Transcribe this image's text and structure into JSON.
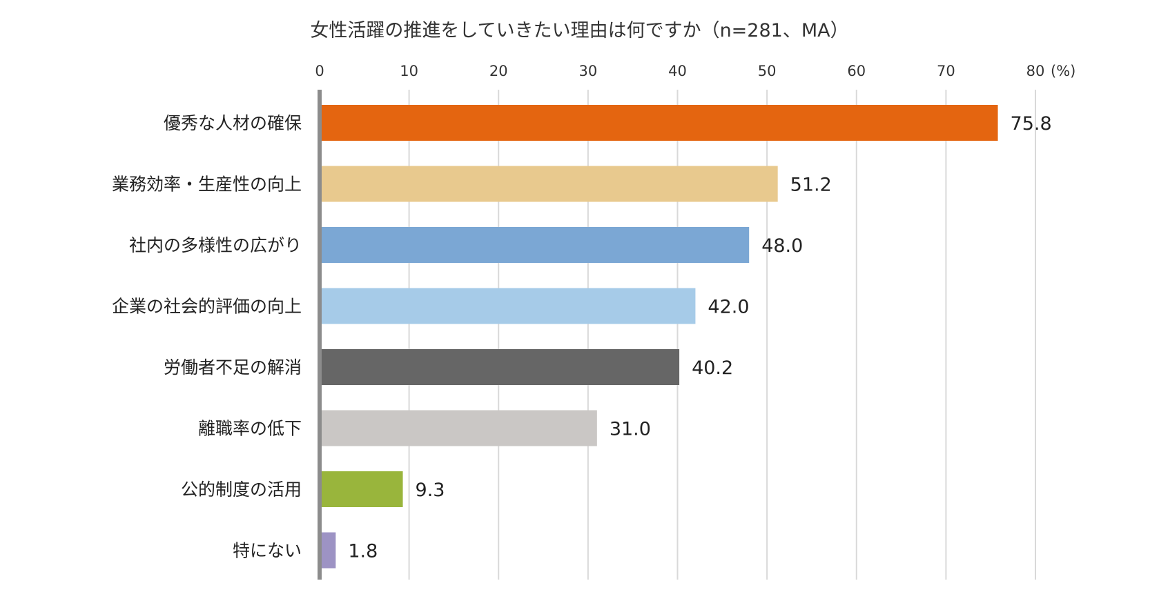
{
  "chart_data": {
    "type": "bar",
    "orientation": "horizontal",
    "title": "女性活躍の推進をしていきたい理由は何ですか（n=281、MA）",
    "unit_label": "(%)",
    "xlim": [
      0,
      80
    ],
    "ticks": [
      0,
      10,
      20,
      30,
      40,
      50,
      60,
      70,
      80
    ],
    "grid": true,
    "categories": [
      "優秀な人材の確保",
      "業務効率・生産性の向上",
      "社内の多様性の広がり",
      "企業の社会的評価の向上",
      "労働者不足の解消",
      "離職率の低下",
      "公的制度の活用",
      "特にない"
    ],
    "values": [
      75.8,
      51.2,
      48.0,
      42.0,
      40.2,
      31.0,
      9.3,
      1.8
    ],
    "value_labels": [
      "75.8",
      "51.2",
      "48.0",
      "42.0",
      "40.2",
      "31.0",
      "9.3",
      "1.8"
    ],
    "colors": [
      "#e46510",
      "#e8c98e",
      "#7ba7d4",
      "#a6cbe8",
      "#666666",
      "#cac7c5",
      "#99b53c",
      "#9d93c4"
    ]
  }
}
